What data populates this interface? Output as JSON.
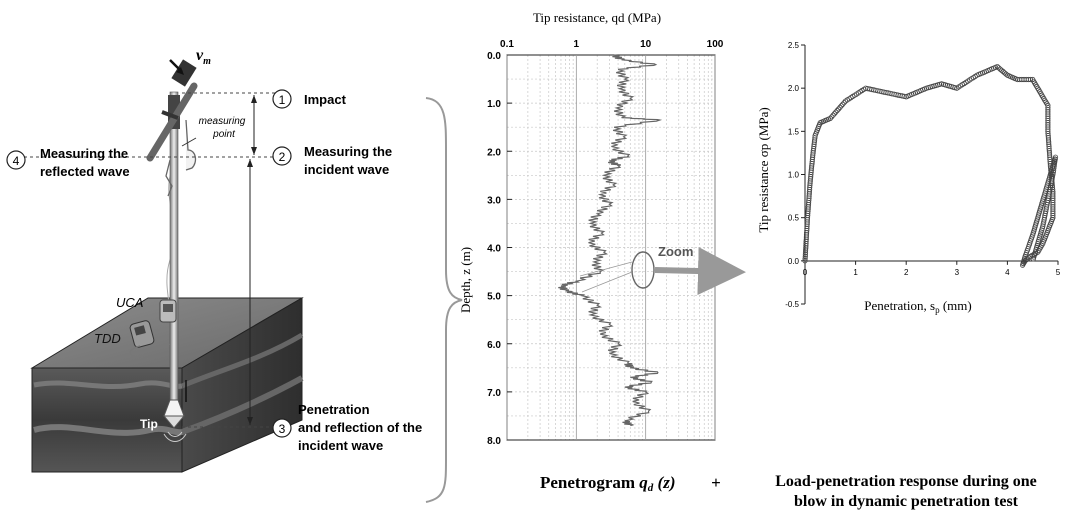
{
  "diagram": {
    "velocity_symbol": "v",
    "velocity_subscript": "m",
    "steps": [
      {
        "number": "1",
        "text": [
          "Impact"
        ]
      },
      {
        "number": "2",
        "text": [
          "Measuring the",
          "incident wave"
        ]
      },
      {
        "number": "3",
        "text": [
          "Penetration",
          "and  reflection of the",
          "incident wave"
        ]
      },
      {
        "number": "4",
        "text": [
          "Measuring the",
          "reflected wave"
        ]
      }
    ],
    "labels": {
      "measuring_point": [
        "measuring",
        "point"
      ],
      "uca": "UCA",
      "tdd": "TDD",
      "tip": "Tip",
      "zoom": "Zoom"
    }
  },
  "captions": {
    "penetrogram_prefix": "Penetrogram ",
    "penetrogram_symbol": "q",
    "penetrogram_subscript": "d",
    "penetrogram_suffix": " (z)",
    "plus": "+",
    "load_line1": "Load-penetration response during one",
    "load_line2": "blow in dynamic penetration test"
  },
  "chart_data": [
    {
      "type": "line",
      "title": "Tip resistance, qd (MPa)",
      "xlabel": "Tip resistance, qd (MPa)",
      "ylabel": "Depth, z (m)",
      "x_scale": "log",
      "xlim": [
        0.1,
        100
      ],
      "ylim": [
        8.0,
        0.0
      ],
      "x_ticks": [
        "0.1",
        "1",
        "10",
        "100"
      ],
      "y_ticks": [
        "0.0",
        "1.0",
        "2.0",
        "3.0",
        "4.0",
        "5.0",
        "6.0",
        "7.0",
        "8.0"
      ],
      "grid": true,
      "series": [
        {
          "depth": [
            0.0,
            0.1,
            0.2,
            0.3,
            0.5,
            0.7,
            0.9,
            1.1,
            1.3,
            1.35,
            1.5,
            1.7,
            1.9,
            2.1,
            2.2,
            2.3,
            2.5,
            2.7,
            2.9,
            3.1,
            3.3,
            3.5,
            3.7,
            3.9,
            4.1,
            4.3,
            4.5,
            4.7,
            4.8,
            4.9,
            5.0,
            5.2,
            5.4,
            5.6,
            5.8,
            6.0,
            6.2,
            6.4,
            6.5,
            6.6,
            6.7,
            6.8,
            6.9,
            7.0,
            7.2,
            7.4,
            7.6,
            7.7
          ],
          "qd": [
            3.5,
            4.5,
            14,
            4.0,
            5.0,
            4.2,
            6.0,
            3.8,
            4.5,
            16,
            3.5,
            4.8,
            3.2,
            5.5,
            3.0,
            4.0,
            2.5,
            3.4,
            2.2,
            3.0,
            2.0,
            1.6,
            2.3,
            1.5,
            2.5,
            1.8,
            2.2,
            1.0,
            0.6,
            0.7,
            1.2,
            2.0,
            1.6,
            3.0,
            2.2,
            4.0,
            3.0,
            5.5,
            6.0,
            15,
            6.0,
            12,
            5.0,
            10,
            6.5,
            11,
            5.0,
            6.0
          ]
        }
      ]
    },
    {
      "type": "scatter",
      "xlabel": "Penetration, s",
      "xlabel_sub": "p",
      "xlabel_unit": " (mm)",
      "ylabel": "Tip resistance σp (MPa)",
      "xlim": [
        0,
        5
      ],
      "ylim": [
        -0.5,
        2.5
      ],
      "x_ticks": [
        "0",
        "1",
        "2",
        "3",
        "4",
        "5"
      ],
      "y_ticks": [
        "-0.5",
        "0.0",
        "0.5",
        "1.0",
        "1.5",
        "2.0",
        "2.5"
      ],
      "grid": false,
      "series": [
        {
          "x": [
            0.0,
            0.02,
            0.05,
            0.1,
            0.15,
            0.2,
            0.3,
            0.5,
            0.8,
            1.2,
            1.6,
            2.0,
            2.4,
            2.7,
            3.0,
            3.4,
            3.8,
            4.0,
            4.2,
            4.5,
            4.6,
            4.7,
            4.8,
            4.8,
            4.85,
            4.9,
            4.9,
            4.8,
            4.7,
            4.6,
            4.45,
            4.35,
            4.3,
            4.35,
            4.5,
            4.65,
            4.8,
            4.9,
            4.95,
            4.9,
            4.8,
            4.7,
            4.6,
            4.5
          ],
          "y": [
            0.0,
            0.2,
            0.5,
            0.9,
            1.2,
            1.45,
            1.6,
            1.65,
            1.85,
            2.0,
            1.95,
            1.9,
            2.0,
            2.05,
            2.0,
            2.15,
            2.25,
            2.15,
            2.1,
            2.1,
            2.0,
            1.9,
            1.8,
            1.5,
            1.1,
            0.8,
            0.5,
            0.35,
            0.2,
            0.1,
            0.05,
            0.0,
            -0.05,
            0.05,
            0.3,
            0.6,
            0.9,
            1.1,
            1.2,
            1.0,
            0.7,
            0.4,
            0.2,
            0.0
          ]
        }
      ]
    }
  ]
}
